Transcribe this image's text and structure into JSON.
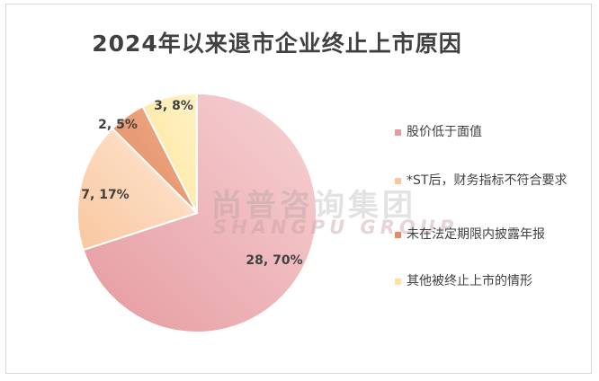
{
  "chart_data": {
    "type": "pie",
    "title": "2024年以来退市企业终止上市原因",
    "categories": [
      "股价低于面值",
      "*ST后，财务指标不符合要求",
      "未在法定期限内披露年报",
      "其他被终止上市的情形"
    ],
    "values": [
      28,
      7,
      2,
      3
    ],
    "percentages": [
      70,
      17,
      5,
      8
    ],
    "data_labels": [
      "28, 70%",
      "7, 17%",
      "2, 5%",
      "3, 8%"
    ],
    "legend_position": "right",
    "colors": [
      "#e59a9f",
      "#f9c79e",
      "#e48b60",
      "#fde49a"
    ]
  },
  "watermark": {
    "cn": "尚普咨询集团",
    "en": "SHANGPU GROUP"
  }
}
